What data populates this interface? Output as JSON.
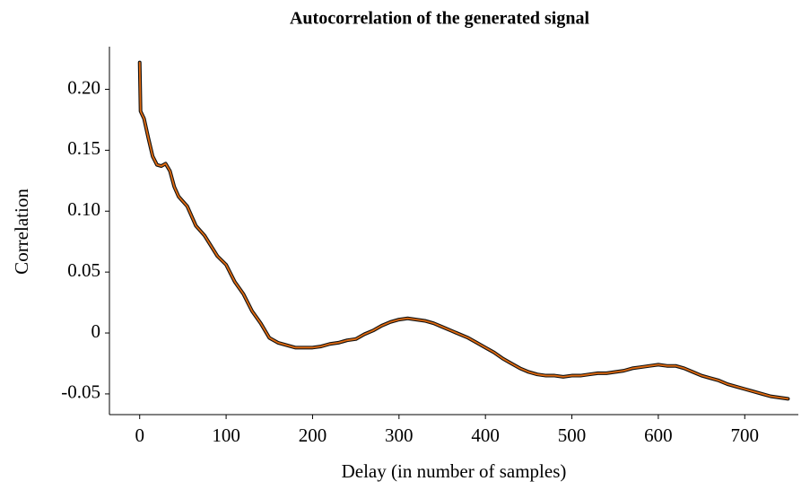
{
  "chart_data": {
    "type": "line",
    "title": "Autocorrelation of the generated signal",
    "xlabel": "Delay (in number of samples)",
    "ylabel": "Correlation",
    "x": [
      0,
      1,
      5,
      10,
      15,
      20,
      25,
      30,
      35,
      40,
      45,
      55,
      65,
      75,
      90,
      100,
      110,
      120,
      130,
      140,
      150,
      160,
      180,
      190,
      200,
      210,
      220,
      230,
      240,
      250,
      260,
      270,
      280,
      290,
      300,
      310,
      320,
      330,
      340,
      350,
      360,
      370,
      380,
      390,
      400,
      410,
      420,
      430,
      440,
      450,
      460,
      470,
      480,
      490,
      500,
      510,
      520,
      530,
      540,
      550,
      560,
      570,
      580,
      590,
      600,
      610,
      620,
      630,
      640,
      650,
      660,
      670,
      680,
      690,
      700,
      710,
      720,
      730,
      740,
      750
    ],
    "series": [
      {
        "color": "#e06a10",
        "edgecolor": "#111111",
        "values": [
          0.222,
          0.182,
          0.176,
          0.16,
          0.145,
          0.138,
          0.137,
          0.139,
          0.133,
          0.12,
          0.112,
          0.104,
          0.088,
          0.08,
          0.063,
          0.056,
          0.042,
          0.032,
          0.018,
          0.008,
          -0.004,
          -0.008,
          -0.012,
          -0.012,
          -0.012,
          -0.011,
          -0.009,
          -0.008,
          -0.006,
          -0.005,
          -0.001,
          0.002,
          0.006,
          0.009,
          0.011,
          0.012,
          0.011,
          0.01,
          0.008,
          0.005,
          0.002,
          -0.001,
          -0.004,
          -0.008,
          -0.012,
          -0.016,
          -0.021,
          -0.025,
          -0.029,
          -0.032,
          -0.034,
          -0.035,
          -0.035,
          -0.036,
          -0.035,
          -0.035,
          -0.034,
          -0.033,
          -0.033,
          -0.032,
          -0.031,
          -0.029,
          -0.028,
          -0.027,
          -0.026,
          -0.027,
          -0.027,
          -0.029,
          -0.032,
          -0.035,
          -0.037,
          -0.039,
          -0.042,
          -0.044,
          -0.046,
          -0.048,
          -0.05,
          -0.052,
          -0.053,
          -0.054
        ]
      }
    ],
    "xlim": [
      -35,
      762
    ],
    "ylim": [
      -0.067,
      0.235
    ],
    "xticks": [
      0,
      100,
      200,
      300,
      400,
      500,
      600,
      700
    ],
    "yticks": [
      {
        "value": 0.2,
        "label": "0.20"
      },
      0.15,
      {
        "value": 0.1,
        "label": "0.10"
      },
      0.05,
      0,
      -0.05
    ],
    "grid": false
  }
}
